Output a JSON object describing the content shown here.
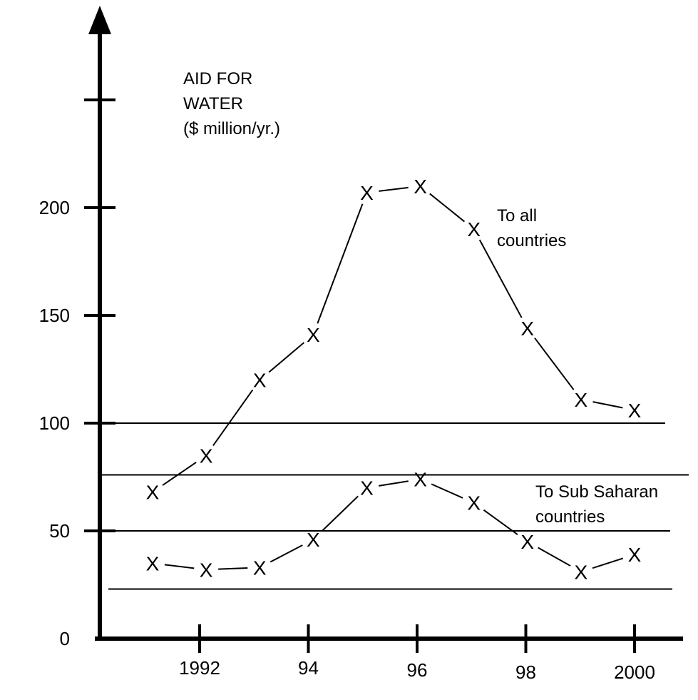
{
  "chart_data": {
    "type": "line",
    "ylabel_lines": [
      "AID FOR",
      "WATER",
      "($ million/yr.)"
    ],
    "y_ticks": [
      {
        "value": 0,
        "label": "0"
      },
      {
        "value": 50,
        "label": "50"
      },
      {
        "value": 100,
        "label": "100"
      },
      {
        "value": 150,
        "label": "150"
      },
      {
        "value": 200,
        "label": "200"
      },
      {
        "value": 250,
        "label": ""
      }
    ],
    "x_ticks": [
      {
        "value": 1992,
        "label": "1992"
      },
      {
        "value": 1994,
        "label": "94"
      },
      {
        "value": 1996,
        "label": "96"
      },
      {
        "value": 1998,
        "label": "98"
      },
      {
        "value": 2000,
        "label": "2000"
      }
    ],
    "xlim": [
      1990.2,
      2000.8
    ],
    "ylim": [
      0,
      290
    ],
    "reference_lines": [
      100,
      76,
      50,
      23
    ],
    "series": [
      {
        "name_lines": [
          "To all",
          "countries"
        ],
        "marker": "X",
        "x": [
          1991,
          1992,
          1993,
          1994,
          1995,
          1996,
          1997,
          1998,
          1999,
          2000
        ],
        "values": [
          68,
          85,
          120,
          141,
          207,
          210,
          190,
          144,
          111,
          106
        ]
      },
      {
        "name_lines": [
          "To Sub Saharan",
          "countries"
        ],
        "marker": "X",
        "x": [
          1991,
          1992,
          1993,
          1994,
          1995,
          1996,
          1997,
          1998,
          1999,
          2000
        ],
        "values": [
          35,
          32,
          33,
          46,
          70,
          74,
          63,
          45,
          31,
          39
        ]
      }
    ]
  }
}
